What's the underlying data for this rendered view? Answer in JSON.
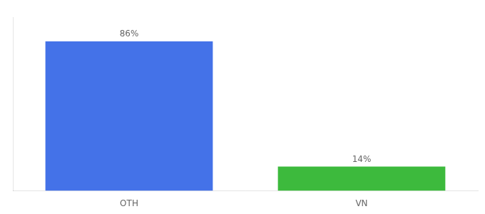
{
  "chart_data": {
    "type": "bar",
    "categories": [
      "OTH",
      "VN"
    ],
    "values": [
      86,
      14
    ],
    "value_labels": [
      "86%",
      "14%"
    ],
    "colors": [
      "#4472e8",
      "#3dba3d"
    ],
    "ylim": [
      0,
      100
    ],
    "yticks": [],
    "data_labels": true,
    "tick_labels": "x",
    "grid": false
  }
}
